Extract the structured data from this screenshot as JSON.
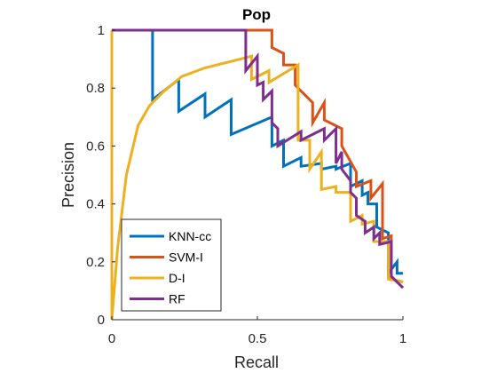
{
  "chart_data": {
    "type": "line",
    "title": "Pop",
    "xlabel": "Recall",
    "ylabel": "Precision",
    "xlim": [
      0,
      1
    ],
    "ylim": [
      0,
      1
    ],
    "xticks": [
      "0",
      "0.5",
      "1"
    ],
    "yticks": [
      "0",
      "0.2",
      "0.4",
      "0.6",
      "0.8",
      "1"
    ],
    "grid": false,
    "legend_position": "bottom-left",
    "series": [
      {
        "name": "KNN-cc",
        "color": "#0072BD",
        "points": [
          [
            0,
            1
          ],
          [
            0.14,
            1
          ],
          [
            0.14,
            0.76
          ],
          [
            0.23,
            0.83
          ],
          [
            0.23,
            0.72
          ],
          [
            0.32,
            0.78
          ],
          [
            0.32,
            0.7
          ],
          [
            0.41,
            0.76
          ],
          [
            0.41,
            0.64
          ],
          [
            0.55,
            0.7
          ],
          [
            0.55,
            0.6
          ],
          [
            0.59,
            0.62
          ],
          [
            0.59,
            0.53
          ],
          [
            0.65,
            0.56
          ],
          [
            0.65,
            0.53
          ],
          [
            0.72,
            0.54
          ],
          [
            0.72,
            0.52
          ],
          [
            0.77,
            0.53
          ],
          [
            0.77,
            0.52
          ],
          [
            0.82,
            0.54
          ],
          [
            0.82,
            0.46
          ],
          [
            0.86,
            0.48
          ],
          [
            0.86,
            0.43
          ],
          [
            0.88,
            0.44
          ],
          [
            0.88,
            0.4
          ],
          [
            0.91,
            0.4
          ],
          [
            0.91,
            0.32
          ],
          [
            0.95,
            0.3
          ],
          [
            0.95,
            0.16
          ],
          [
            0.98,
            0.2
          ],
          [
            0.98,
            0.16
          ],
          [
            1,
            0.16
          ]
        ]
      },
      {
        "name": "SVM-I",
        "color": "#D95319",
        "points": [
          [
            0,
            1
          ],
          [
            0.55,
            1
          ],
          [
            0.55,
            0.94
          ],
          [
            0.59,
            0.92
          ],
          [
            0.59,
            0.88
          ],
          [
            0.63,
            0.88
          ],
          [
            0.63,
            0.81
          ],
          [
            0.69,
            0.75
          ],
          [
            0.69,
            0.68
          ],
          [
            0.73,
            0.75
          ],
          [
            0.73,
            0.69
          ],
          [
            0.79,
            0.66
          ],
          [
            0.79,
            0.6
          ],
          [
            0.84,
            0.51
          ],
          [
            0.84,
            0.46
          ],
          [
            0.89,
            0.48
          ],
          [
            0.89,
            0.42
          ],
          [
            0.93,
            0.47
          ],
          [
            0.93,
            0.28
          ],
          [
            0.96,
            0.29
          ],
          [
            0.96,
            0.14
          ],
          [
            1,
            0.13
          ]
        ]
      },
      {
        "name": "D-I",
        "color": "#EDB120",
        "points": [
          [
            0,
            1
          ],
          [
            0,
            0
          ],
          [
            0.02,
            0.25
          ],
          [
            0.05,
            0.5
          ],
          [
            0.09,
            0.67
          ],
          [
            0.13,
            0.74
          ],
          [
            0.18,
            0.79
          ],
          [
            0.24,
            0.84
          ],
          [
            0.32,
            0.87
          ],
          [
            0.4,
            0.89
          ],
          [
            0.48,
            0.91
          ],
          [
            0.48,
            0.83
          ],
          [
            0.54,
            0.86
          ],
          [
            0.54,
            0.82
          ],
          [
            0.64,
            0.88
          ],
          [
            0.64,
            0.62
          ],
          [
            0.68,
            0.62
          ],
          [
            0.68,
            0.52
          ],
          [
            0.72,
            0.58
          ],
          [
            0.72,
            0.45
          ],
          [
            0.77,
            0.46
          ],
          [
            0.77,
            0.44
          ],
          [
            0.82,
            0.44
          ],
          [
            0.82,
            0.34
          ],
          [
            0.86,
            0.36
          ],
          [
            0.86,
            0.33
          ],
          [
            0.9,
            0.34
          ],
          [
            0.9,
            0.27
          ],
          [
            0.95,
            0.27
          ],
          [
            0.95,
            0.14
          ],
          [
            1,
            0.13
          ]
        ]
      },
      {
        "name": "RF",
        "color": "#7E2F8E",
        "points": [
          [
            0,
            1
          ],
          [
            0.46,
            1
          ],
          [
            0.46,
            0.86
          ],
          [
            0.5,
            0.91
          ],
          [
            0.5,
            0.81
          ],
          [
            0.52,
            0.82
          ],
          [
            0.52,
            0.76
          ],
          [
            0.55,
            0.79
          ],
          [
            0.55,
            0.68
          ],
          [
            0.57,
            0.66
          ],
          [
            0.57,
            0.6
          ],
          [
            0.65,
            0.65
          ],
          [
            0.65,
            0.62
          ],
          [
            0.73,
            0.66
          ],
          [
            0.73,
            0.62
          ],
          [
            0.77,
            0.66
          ],
          [
            0.77,
            0.54
          ],
          [
            0.79,
            0.58
          ],
          [
            0.79,
            0.52
          ],
          [
            0.82,
            0.48
          ],
          [
            0.82,
            0.44
          ],
          [
            0.84,
            0.42
          ],
          [
            0.84,
            0.36
          ],
          [
            0.87,
            0.34
          ],
          [
            0.87,
            0.3
          ],
          [
            0.9,
            0.32
          ],
          [
            0.9,
            0.28
          ],
          [
            0.92,
            0.3
          ],
          [
            0.92,
            0.26
          ],
          [
            0.96,
            0.27
          ],
          [
            0.96,
            0.15
          ],
          [
            1,
            0.11
          ]
        ]
      }
    ]
  }
}
